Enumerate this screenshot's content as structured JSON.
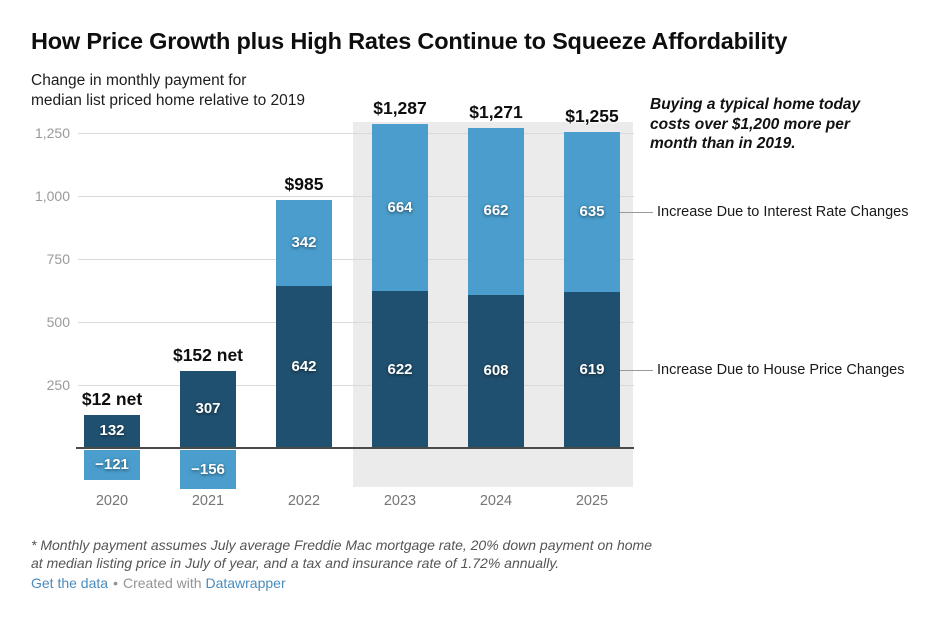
{
  "header": {
    "title": "How Price Growth plus High Rates Continue to Squeeze Affordability",
    "subtitle_line1": "Change in monthly payment for",
    "subtitle_line2": "median list priced home relative to 2019"
  },
  "annotation": {
    "line1": "Buying a typical home today",
    "line2": "costs over $1,200 more per",
    "line3": "month than in 2019."
  },
  "chart_data": {
    "type": "bar",
    "stacked": true,
    "title": "How Price Growth plus High Rates Continue to Squeeze Affordability",
    "subtitle": "Change in monthly payment for median list priced home relative to 2019",
    "categories": [
      "2020",
      "2021",
      "2022",
      "2023",
      "2024",
      "2025"
    ],
    "series": [
      {
        "name": "Increase Due to House Price Changes",
        "color": "#20506f",
        "values": [
          132,
          307,
          642,
          622,
          608,
          619
        ]
      },
      {
        "name": "Increase Due to Interest Rate Changes",
        "color": "#4a9dcc",
        "values": [
          -121,
          -156,
          342,
          664,
          662,
          635
        ]
      }
    ],
    "total_labels": [
      "$12 net",
      "$152 net",
      "$985",
      "$1,287",
      "$1,271",
      "$1,255"
    ],
    "y_ticks": [
      {
        "label": "250",
        "value": 250
      },
      {
        "label": "500",
        "value": 500
      },
      {
        "label": "750",
        "value": 750
      },
      {
        "label": "1,000",
        "value": 1000
      },
      {
        "label": "1,250",
        "value": 1250
      }
    ],
    "ylim": [
      -170,
      1350
    ],
    "grid": true,
    "legend_position": "right",
    "forecast_band_categories": [
      "2023",
      "2024",
      "2025"
    ],
    "annotation": "Buying a typical home today costs over $1,200 more per month than in 2019."
  },
  "footer": {
    "footnote_line1": "* Monthly payment assumes July average Freddie Mac mortgage rate, 20% down payment on home",
    "footnote_line2": "at median listing price in July of year, and a tax and insurance rate of 1.72% annually.",
    "get_data_label": "Get the data",
    "separator": "•",
    "created_with": "Created with",
    "brand": "Datawrapper"
  },
  "colors": {
    "dark_blue": "#20506f",
    "light_blue": "#4a9dcc",
    "forecast_band": "#ebebeb",
    "gridline": "#dadada",
    "axis": "#4a4a4a",
    "link": "#4a8cbe"
  }
}
